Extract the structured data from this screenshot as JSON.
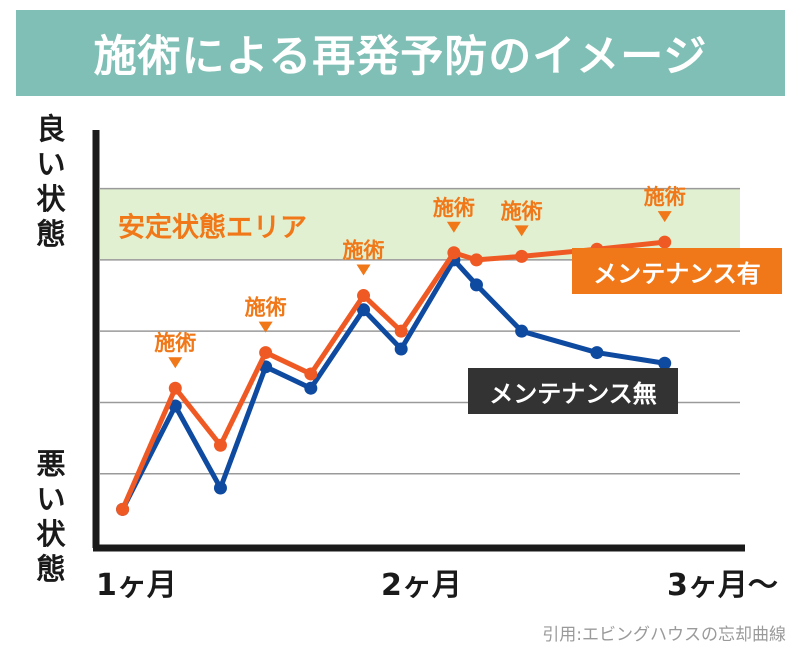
{
  "header": {
    "title": "施術による再発予防のイメージ"
  },
  "y_axis": {
    "top_label": "良い\n状態",
    "bottom_label": "悪い\n状態"
  },
  "x_axis": {
    "ticks": [
      "1ヶ月",
      "2ヶ月",
      "3ヶ月〜"
    ]
  },
  "zone": {
    "label": "安定状態エリア",
    "color": "#e2f0d2",
    "text_color": "#f07818"
  },
  "treatment_label": "施術",
  "citation": "引用:エビングハウスの忘却曲線",
  "chart_data": {
    "type": "line",
    "y_range": [
      0,
      5.5
    ],
    "x_range": [
      0,
      8.5
    ],
    "stable_zone": [
      4,
      5
    ],
    "series": [
      {
        "name": "メンテナンス有",
        "color": "#ef5a24",
        "label_bg": "#f07818",
        "x": [
          0.3,
          1.0,
          1.6,
          2.2,
          2.8,
          3.5,
          4.0,
          4.7,
          5.0,
          5.6,
          6.6,
          7.5
        ],
        "y": [
          0.5,
          2.2,
          1.4,
          2.7,
          2.4,
          3.5,
          3.0,
          4.1,
          4.0,
          4.05,
          4.15,
          4.25
        ]
      },
      {
        "name": "メンテナンス無",
        "color": "#0e4aa0",
        "label_bg": "#333333",
        "x": [
          0.3,
          1.0,
          1.6,
          2.2,
          2.8,
          3.5,
          4.0,
          4.7,
          5.0,
          5.6,
          6.6,
          7.5
        ],
        "y": [
          0.5,
          1.95,
          0.8,
          2.5,
          2.2,
          3.3,
          2.75,
          4.0,
          3.65,
          3.0,
          2.7,
          2.55
        ]
      }
    ],
    "treatments_x": [
      1.0,
      2.2,
      3.5,
      4.7,
      5.6,
      7.5
    ]
  }
}
